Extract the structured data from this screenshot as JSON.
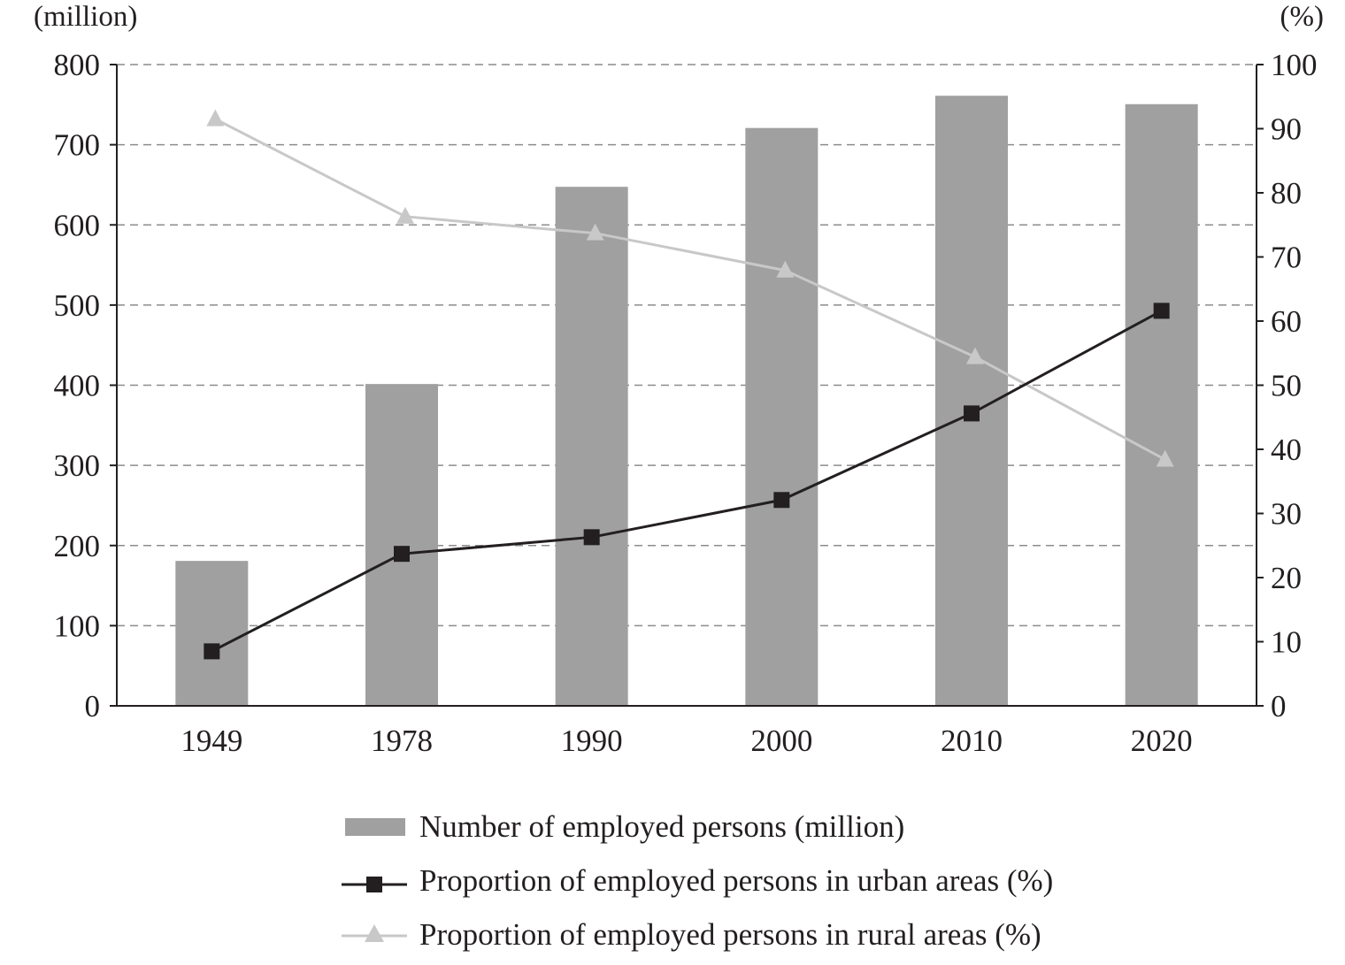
{
  "chart_data": {
    "type": "bar",
    "categories": [
      "1949",
      "1978",
      "1990",
      "2000",
      "2010",
      "2020"
    ],
    "left_axis": {
      "unit_label": "(million)",
      "ylim": [
        0,
        800
      ],
      "ticks": [
        "0",
        "100",
        "200",
        "300",
        "400",
        "500",
        "600",
        "700",
        "800"
      ]
    },
    "right_axis": {
      "unit_label": "(%)",
      "ylim": [
        0,
        100
      ],
      "ticks": [
        "0",
        "10",
        "20",
        "30",
        "40",
        "50",
        "60",
        "70",
        "80",
        "90",
        "100"
      ]
    },
    "grid": true,
    "grid_style": "dashed horizontal",
    "legend_position": "bottom",
    "series": [
      {
        "name": "Number of employed persons (million)",
        "type": "bar",
        "axis": "left",
        "color": "#a0a0a0",
        "values": [
          180.8,
          401.5,
          647.5,
          720.9,
          761.1,
          750.6
        ]
      },
      {
        "name": "Proportion of employed persons in urban areas (%)",
        "type": "line",
        "axis": "right",
        "marker": "square",
        "color": "#231f20",
        "values": [
          8.5,
          23.7,
          26.3,
          32.1,
          45.6,
          61.6
        ]
      },
      {
        "name": "Proportion of employed persons in rural areas (%)",
        "type": "line",
        "axis": "right",
        "marker": "triangle",
        "color": "#c8c8c8",
        "values": [
          91.5,
          76.3,
          73.7,
          67.9,
          54.4,
          38.4
        ]
      }
    ]
  }
}
